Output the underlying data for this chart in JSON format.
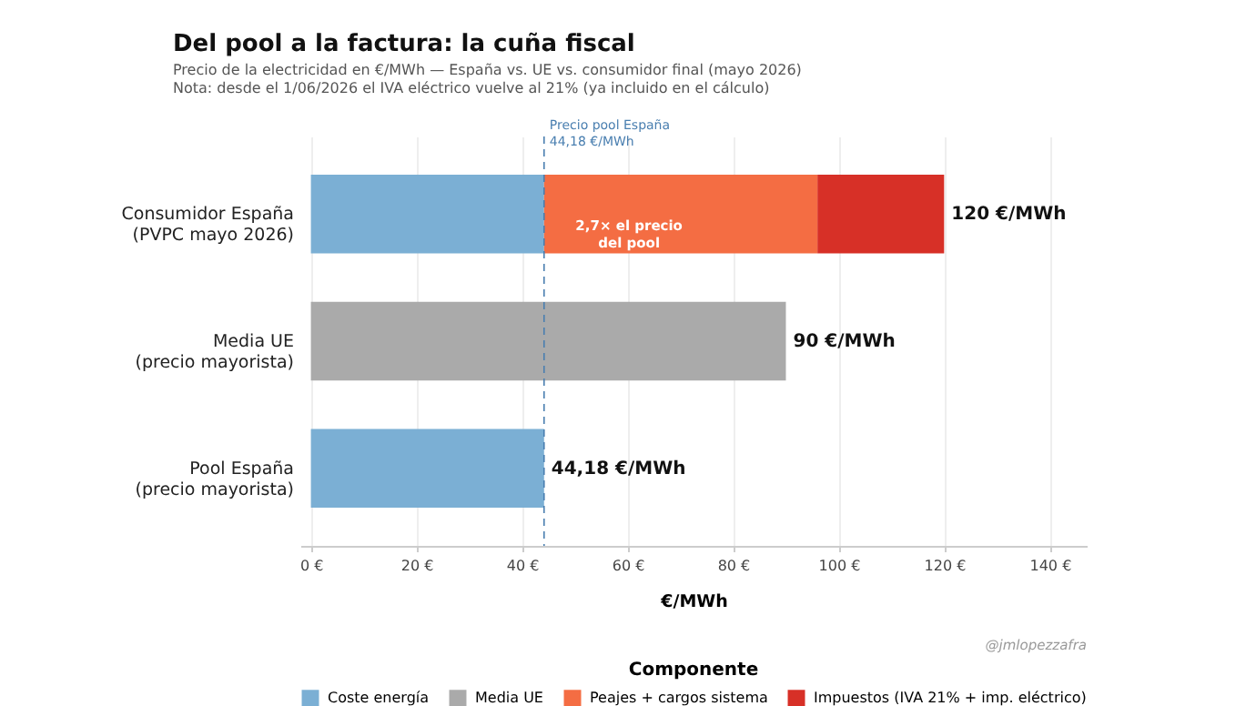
{
  "chart_data": {
    "type": "bar",
    "orientation": "horizontal",
    "stacked": true,
    "title": "Del pool a la factura: la cuña fiscal",
    "subtitle": "Precio de la electricidad en €/MWh — España vs. UE vs. consumidor final (mayo 2026)\nNota: desde el 1/06/2026 el IVA eléctrico vuelve al 21% (ya incluido en el cálculo)",
    "xlabel": "€/MWh",
    "legend_title": "Componente",
    "categories": [
      "Consumidor España\n(PVPC mayo 2026)",
      "Media UE\n(precio mayorista)",
      "Pool España\n(precio mayorista)"
    ],
    "series": [
      {
        "name": "Coste energía",
        "color": "#7bafd4",
        "values": [
          44.18,
          null,
          44.18
        ]
      },
      {
        "name": "Media UE",
        "color": "#aaaaaa",
        "values": [
          null,
          90,
          null
        ]
      },
      {
        "name": "Peajes + cargos sistema",
        "color": "#f46d43",
        "values": [
          51.8,
          null,
          null
        ]
      },
      {
        "name": "Impuestos (IVA 21% + imp. eléctrico)",
        "color": "#d73027",
        "values": [
          24.0,
          null,
          null
        ]
      }
    ],
    "totals": [
      "120 €/MWh",
      "90 €/MWh",
      "44,18 €/MWh"
    ],
    "xlim": [
      -2,
      147
    ],
    "xticks": [
      {
        "value": 0,
        "label": "0 €"
      },
      {
        "value": 20,
        "label": "20 €"
      },
      {
        "value": 40,
        "label": "40 €"
      },
      {
        "value": 60,
        "label": "60 €"
      },
      {
        "value": 80,
        "label": "80 €"
      },
      {
        "value": 100,
        "label": "100 €"
      },
      {
        "value": 120,
        "label": "120 €"
      },
      {
        "value": 140,
        "label": "140 €"
      }
    ],
    "ref_lines": [
      {
        "axis": "x",
        "value": 44.18,
        "label": "Precio pool España\n44,18 €/MWh",
        "color": "#4a7fb0",
        "line_style": "dashed"
      }
    ],
    "annotations": [
      "2,7× el precio\ndel pool",
      "@jmlopezzafra"
    ],
    "grid": "x",
    "legend": "bottom"
  }
}
